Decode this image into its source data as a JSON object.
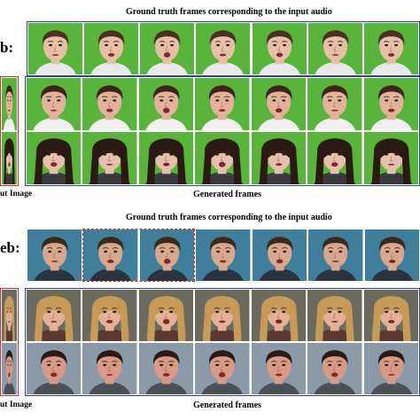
{
  "top": {
    "gt_caption": "Ground truth frames corresponding to the input audio",
    "side_label": "b:",
    "input_label": "ut Image",
    "generated_caption": "Generated frames"
  },
  "bottom": {
    "gt_caption": "Ground truth frames corresponding to the input audio",
    "side_label": "eb:",
    "input_label": "ut Image",
    "generated_caption": "Generated frames"
  },
  "colors": {
    "green_screen": "#58b43a",
    "studio_blue": "#3f7f9c",
    "blue_box": "#2a3f9a",
    "red_box": "#d42a2a",
    "red_dashed": "#e02020"
  }
}
